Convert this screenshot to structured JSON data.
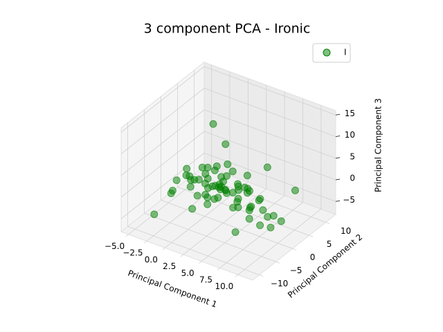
{
  "chart_data": {
    "type": "scatter3d",
    "title": "3 component PCA - Ironic",
    "xlabel": "Principal Component 1",
    "ylabel": "Principal Component 2",
    "zlabel": "Principal Component 3",
    "xlim": [
      -6,
      12
    ],
    "ylim": [
      -12,
      13
    ],
    "zlim": [
      -8,
      16
    ],
    "xticks": [
      {
        "value": -5,
        "label": "−5.0"
      },
      {
        "value": -2.5,
        "label": "−2.5"
      },
      {
        "value": 0,
        "label": "0.0"
      },
      {
        "value": 2.5,
        "label": "2.5"
      },
      {
        "value": 5,
        "label": "5.0"
      },
      {
        "value": 7.5,
        "label": "7.5"
      },
      {
        "value": 10,
        "label": "10.0"
      }
    ],
    "yticks": [
      {
        "value": -10,
        "label": "−10"
      },
      {
        "value": -5,
        "label": "−5"
      },
      0,
      5,
      10
    ],
    "zticks": [
      {
        "value": -5,
        "label": "−5"
      },
      0,
      5,
      10,
      15
    ],
    "grid": true,
    "legend": "upper right",
    "series": [
      {
        "name": "I",
        "color": "green",
        "x": [
          0.5,
          1.2,
          -1.0,
          2.3,
          3.1,
          -0.5,
          1.8,
          4.2,
          2.7,
          -2.1,
          0.0,
          1.5,
          3.6,
          5.0,
          -1.5,
          2.0,
          0.8,
          4.5,
          6.1,
          3.3,
          -0.8,
          1.1,
          2.9,
          5.5,
          7.0,
          -2.5,
          0.3,
          1.7,
          3.9,
          6.5,
          8.0,
          -1.2,
          0.9,
          2.4,
          4.8,
          7.5,
          -3.0,
          1.3,
          3.0,
          5.8,
          9.0,
          -0.3,
          2.1,
          4.0,
          6.8,
          8.5,
          0.6,
          2.6,
          4.4,
          7.2,
          -1.8,
          1.0,
          3.4,
          5.2,
          10.0,
          -2.8,
          0.2,
          2.2,
          6.0,
          9.5,
          1.4,
          3.7,
          5.6,
          -0.9,
          2.8,
          4.9,
          7.8,
          -4.2,
          -3.5,
          11.0
        ],
        "y": [
          -1,
          0.5,
          -2,
          1,
          -0.5,
          2,
          -3,
          0.8,
          -1.5,
          0,
          3,
          -2.5,
          2,
          -1,
          -1,
          4,
          -4,
          3,
          0,
          -3,
          1,
          2.5,
          0.2,
          1.5,
          -2,
          -3,
          -0.5,
          1.8,
          -2,
          2,
          -1,
          3.5,
          -1.8,
          -4.5,
          -0.5,
          1,
          1,
          0,
          3.5,
          -3,
          0,
          -2.5,
          -1,
          4,
          -1.5,
          2,
          1.2,
          0.5,
          -5,
          3,
          -1.5,
          -6,
          1,
          2.5,
          1,
          -4,
          4.5,
          2,
          -4,
          -2,
          -0.8,
          0.3,
          0.5,
          0.2,
          -2.2,
          1.2,
          -0.5,
          -6,
          -2,
          3
        ],
        "z": [
          0.5,
          -0.5,
          1.0,
          -1.0,
          0.2,
          -0.8,
          1.5,
          -1.8,
          2.0,
          0.0,
          0.8,
          -1.2,
          0.5,
          -2.2,
          -1.5,
          1.2,
          -0.3,
          -0.6,
          -2.8,
          2.6,
          2.2,
          -2.0,
          3.0,
          -3.5,
          -3.0,
          0.6,
          -2.5,
          0.0,
          1.0,
          -1.5,
          -4.5,
          0.4,
          3.5,
          -1.0,
          2.2,
          -2.5,
          -1.0,
          -3.2,
          -2.2,
          0.8,
          -5.0,
          1.8,
          5.5,
          1.5,
          3.0,
          -3.8,
          13.0,
          10.0,
          4.0,
          6.0,
          2.8,
          -2.0,
          -4.5,
          -4.0,
          -3.5,
          -2.0,
          -1.5,
          4.2,
          -5.5,
          -1.0,
          0.3,
          -0.4,
          0.6,
          -0.2,
          -0.6,
          1.0,
          1.2,
          -6.5,
          -3.0,
          3.0
        ]
      }
    ]
  }
}
